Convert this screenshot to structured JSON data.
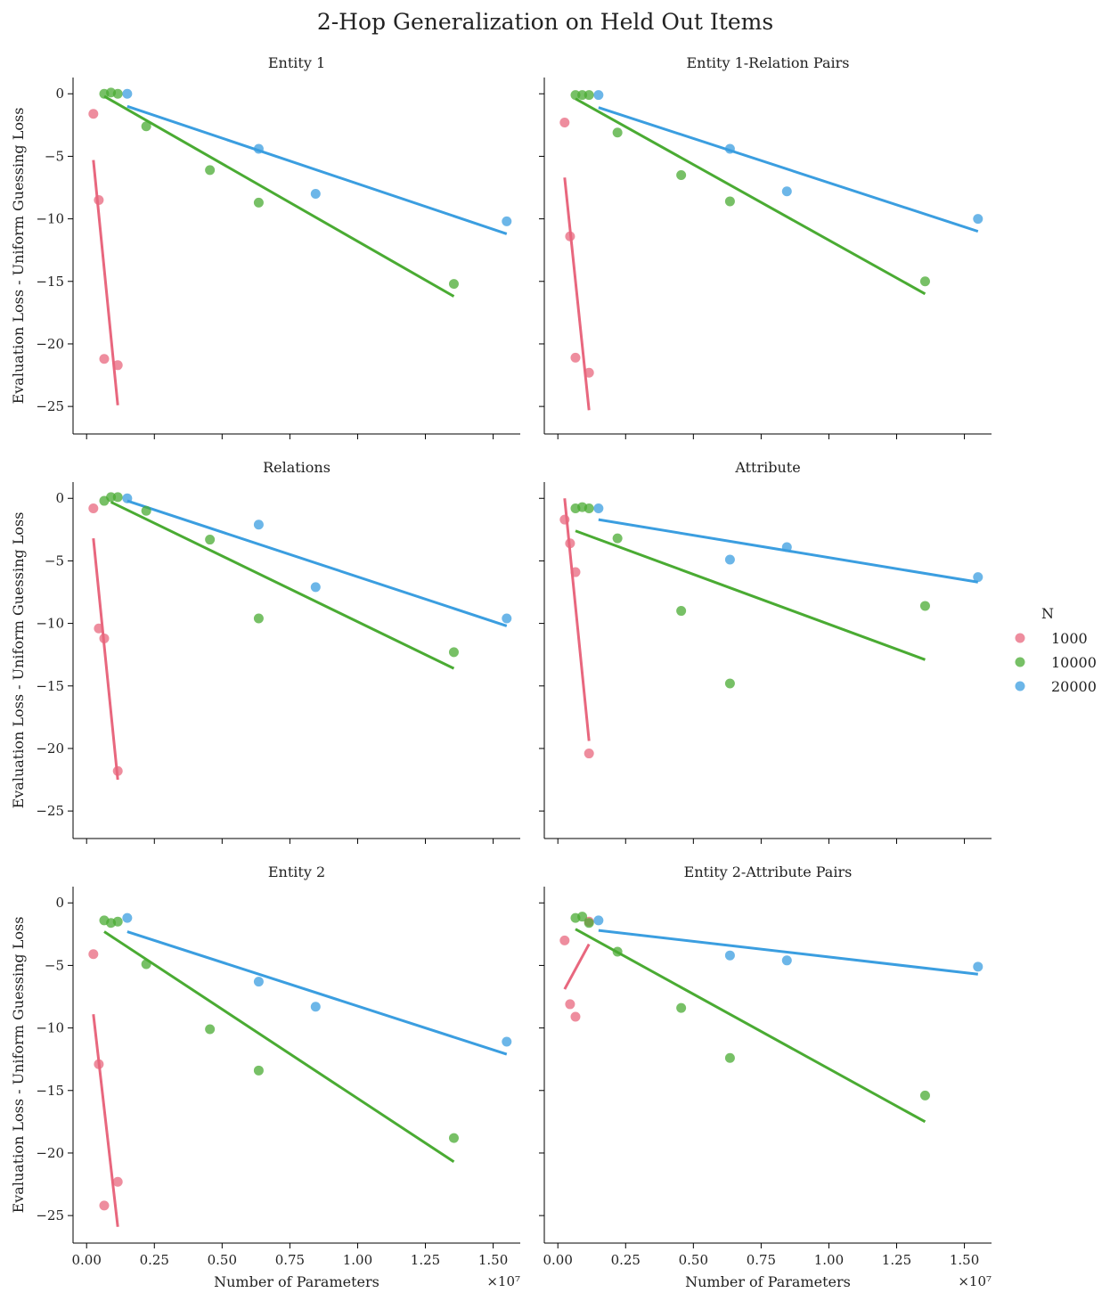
{
  "chart_data": {
    "type": "scatter",
    "title": "2-Hop Generalization on Held Out Items",
    "xlabel": "Number of Parameters",
    "ylabel": "Evaluation Loss - Uniform Guessing Loss",
    "x_scale_label": "×10⁷",
    "x_scale": 10000000,
    "xlim": [
      -0.05,
      1.6
    ],
    "ylim": [
      -27.2,
      1.3
    ],
    "xticks": [
      0.0,
      0.25,
      0.5,
      0.75,
      1.0,
      1.25,
      1.5
    ],
    "xtick_labels": [
      "0.00",
      "0.25",
      "0.50",
      "0.75",
      "1.00",
      "1.25",
      "1.50"
    ],
    "yticks": [
      0,
      -5,
      -10,
      -15,
      -20,
      -25
    ],
    "ytick_labels": [
      "0",
      "−5",
      "−10",
      "−15",
      "−20",
      "−25"
    ],
    "legend": {
      "title": "N",
      "placement": "right",
      "entries": [
        {
          "label": "1000",
          "color": "#e8677e"
        },
        {
          "label": "10000",
          "color": "#4aab33"
        },
        {
          "label": "20000",
          "color": "#3b9ee0"
        }
      ]
    },
    "panels": [
      {
        "title": "Entity 1",
        "series": [
          {
            "name": "1000",
            "color": "#e8677e",
            "points": [
              [
                0.025,
                -1.6
              ],
              [
                0.045,
                -8.5
              ],
              [
                0.065,
                -21.2
              ],
              [
                0.115,
                -21.7
              ]
            ],
            "fit": [
              [
                0.025,
                -5.3
              ],
              [
                0.115,
                -24.9
              ]
            ]
          },
          {
            "name": "10000",
            "color": "#4aab33",
            "points": [
              [
                0.065,
                0.0
              ],
              [
                0.09,
                0.1
              ],
              [
                0.115,
                0.0
              ],
              [
                0.22,
                -2.6
              ],
              [
                0.455,
                -6.1
              ],
              [
                0.635,
                -8.7
              ],
              [
                1.355,
                -15.2
              ]
            ],
            "fit": [
              [
                0.065,
                -0.2
              ],
              [
                1.355,
                -16.2
              ]
            ]
          },
          {
            "name": "20000",
            "color": "#3b9ee0",
            "points": [
              [
                0.15,
                0.0
              ],
              [
                0.635,
                -4.4
              ],
              [
                0.845,
                -8.0
              ],
              [
                1.55,
                -10.2
              ]
            ],
            "fit": [
              [
                0.15,
                -1.0
              ],
              [
                1.55,
                -11.2
              ]
            ]
          }
        ]
      },
      {
        "title": "Entity 1-Relation Pairs",
        "series": [
          {
            "name": "1000",
            "color": "#e8677e",
            "points": [
              [
                0.025,
                -2.3
              ],
              [
                0.045,
                -11.4
              ],
              [
                0.065,
                -21.1
              ],
              [
                0.115,
                -22.3
              ]
            ],
            "fit": [
              [
                0.025,
                -6.7
              ],
              [
                0.115,
                -25.3
              ]
            ]
          },
          {
            "name": "10000",
            "color": "#4aab33",
            "points": [
              [
                0.065,
                -0.1
              ],
              [
                0.09,
                -0.1
              ],
              [
                0.115,
                -0.1
              ],
              [
                0.22,
                -3.1
              ],
              [
                0.455,
                -6.5
              ],
              [
                0.635,
                -8.6
              ],
              [
                1.355,
                -15.0
              ]
            ],
            "fit": [
              [
                0.065,
                -0.4
              ],
              [
                1.355,
                -16.0
              ]
            ]
          },
          {
            "name": "20000",
            "color": "#3b9ee0",
            "points": [
              [
                0.15,
                -0.1
              ],
              [
                0.635,
                -4.4
              ],
              [
                0.845,
                -7.8
              ],
              [
                1.55,
                -10.0
              ]
            ],
            "fit": [
              [
                0.15,
                -1.1
              ],
              [
                1.55,
                -11.0
              ]
            ]
          }
        ]
      },
      {
        "title": "Relations",
        "series": [
          {
            "name": "1000",
            "color": "#e8677e",
            "points": [
              [
                0.025,
                -0.8
              ],
              [
                0.045,
                -10.4
              ],
              [
                0.065,
                -11.2
              ],
              [
                0.115,
                -21.8
              ]
            ],
            "fit": [
              [
                0.025,
                -3.2
              ],
              [
                0.115,
                -22.5
              ]
            ]
          },
          {
            "name": "10000",
            "color": "#4aab33",
            "points": [
              [
                0.065,
                -0.2
              ],
              [
                0.09,
                0.1
              ],
              [
                0.115,
                0.1
              ],
              [
                0.22,
                -1.0
              ],
              [
                0.455,
                -3.3
              ],
              [
                0.635,
                -9.6
              ],
              [
                1.355,
                -12.3
              ]
            ],
            "fit": [
              [
                0.09,
                -0.3
              ],
              [
                1.355,
                -13.6
              ]
            ]
          },
          {
            "name": "20000",
            "color": "#3b9ee0",
            "points": [
              [
                0.15,
                0.0
              ],
              [
                0.635,
                -2.1
              ],
              [
                0.845,
                -7.1
              ],
              [
                1.55,
                -9.6
              ]
            ],
            "fit": [
              [
                0.15,
                -0.2
              ],
              [
                1.55,
                -10.2
              ]
            ]
          }
        ]
      },
      {
        "title": "Attribute",
        "series": [
          {
            "name": "1000",
            "color": "#e8677e",
            "points": [
              [
                0.025,
                -1.7
              ],
              [
                0.045,
                -3.6
              ],
              [
                0.065,
                -5.9
              ],
              [
                0.115,
                -20.4
              ]
            ],
            "fit": [
              [
                0.025,
                0.0
              ],
              [
                0.115,
                -19.4
              ]
            ]
          },
          {
            "name": "10000",
            "color": "#4aab33",
            "points": [
              [
                0.065,
                -0.8
              ],
              [
                0.09,
                -0.7
              ],
              [
                0.115,
                -0.8
              ],
              [
                0.22,
                -3.2
              ],
              [
                0.455,
                -9.0
              ],
              [
                0.635,
                -14.8
              ],
              [
                1.355,
                -8.6
              ]
            ],
            "fit": [
              [
                0.065,
                -2.6
              ],
              [
                1.355,
                -12.9
              ]
            ]
          },
          {
            "name": "20000",
            "color": "#3b9ee0",
            "points": [
              [
                0.15,
                -0.8
              ],
              [
                0.635,
                -4.9
              ],
              [
                0.845,
                -3.9
              ],
              [
                1.55,
                -6.3
              ]
            ],
            "fit": [
              [
                0.15,
                -1.7
              ],
              [
                1.55,
                -6.7
              ]
            ]
          }
        ]
      },
      {
        "title": "Entity 2",
        "series": [
          {
            "name": "1000",
            "color": "#e8677e",
            "points": [
              [
                0.025,
                -4.1
              ],
              [
                0.045,
                -12.9
              ],
              [
                0.065,
                -24.2
              ],
              [
                0.115,
                -22.3
              ]
            ],
            "fit": [
              [
                0.025,
                -8.9
              ],
              [
                0.115,
                -25.9
              ]
            ]
          },
          {
            "name": "10000",
            "color": "#4aab33",
            "points": [
              [
                0.065,
                -1.4
              ],
              [
                0.09,
                -1.6
              ],
              [
                0.115,
                -1.5
              ],
              [
                0.22,
                -4.9
              ],
              [
                0.455,
                -10.1
              ],
              [
                0.635,
                -13.4
              ],
              [
                1.355,
                -18.8
              ]
            ],
            "fit": [
              [
                0.065,
                -2.3
              ],
              [
                1.355,
                -20.7
              ]
            ]
          },
          {
            "name": "20000",
            "color": "#3b9ee0",
            "points": [
              [
                0.15,
                -1.2
              ],
              [
                0.635,
                -6.3
              ],
              [
                0.845,
                -8.3
              ],
              [
                1.55,
                -11.1
              ]
            ],
            "fit": [
              [
                0.15,
                -2.3
              ],
              [
                1.55,
                -12.1
              ]
            ]
          }
        ]
      },
      {
        "title": "Entity 2-Attribute Pairs",
        "series": [
          {
            "name": "1000",
            "color": "#e8677e",
            "points": [
              [
                0.025,
                -3.0
              ],
              [
                0.045,
                -8.1
              ],
              [
                0.065,
                -9.1
              ],
              [
                0.115,
                -1.5
              ]
            ],
            "fit": [
              [
                0.025,
                -6.9
              ],
              [
                0.115,
                -3.3
              ]
            ]
          },
          {
            "name": "10000",
            "color": "#4aab33",
            "points": [
              [
                0.065,
                -1.2
              ],
              [
                0.09,
                -1.1
              ],
              [
                0.115,
                -1.6
              ],
              [
                0.22,
                -3.9
              ],
              [
                0.455,
                -8.4
              ],
              [
                0.635,
                -12.4
              ],
              [
                1.355,
                -15.4
              ]
            ],
            "fit": [
              [
                0.065,
                -2.1
              ],
              [
                1.355,
                -17.5
              ]
            ]
          },
          {
            "name": "20000",
            "color": "#3b9ee0",
            "points": [
              [
                0.15,
                -1.4
              ],
              [
                0.635,
                -4.2
              ],
              [
                0.845,
                -4.6
              ],
              [
                1.55,
                -5.1
              ]
            ],
            "fit": [
              [
                0.15,
                -2.2
              ],
              [
                1.55,
                -5.7
              ]
            ]
          }
        ]
      }
    ]
  }
}
